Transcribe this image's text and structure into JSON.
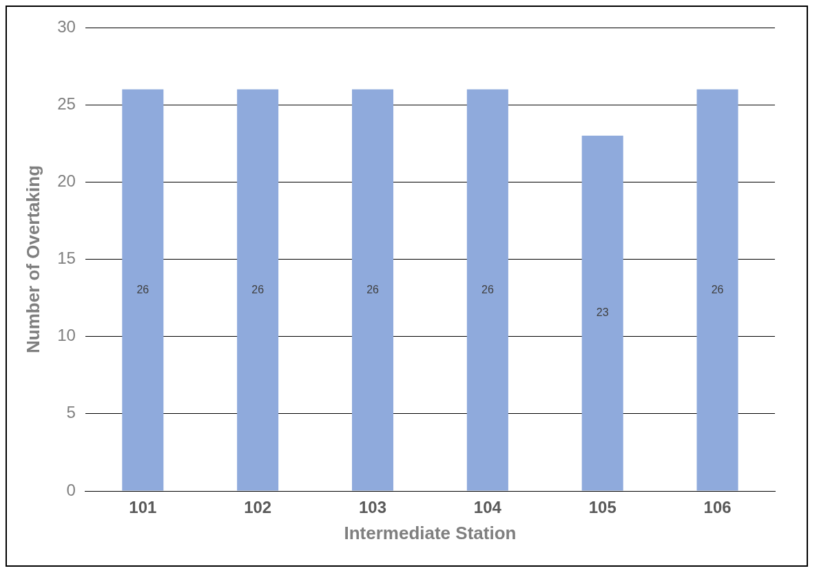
{
  "chart_data": {
    "type": "bar",
    "xlabel": "Intermediate Station",
    "ylabel": "Number of Overtaking",
    "categories": [
      "101",
      "102",
      "103",
      "104",
      "105",
      "106"
    ],
    "values": [
      26,
      26,
      26,
      26,
      23,
      26
    ],
    "color": "#8faadc",
    "ylim": [
      0,
      30
    ],
    "yticks": [
      0,
      5,
      10,
      15,
      20,
      25,
      30
    ],
    "grid": "y",
    "data_labels": true,
    "legend": false
  }
}
